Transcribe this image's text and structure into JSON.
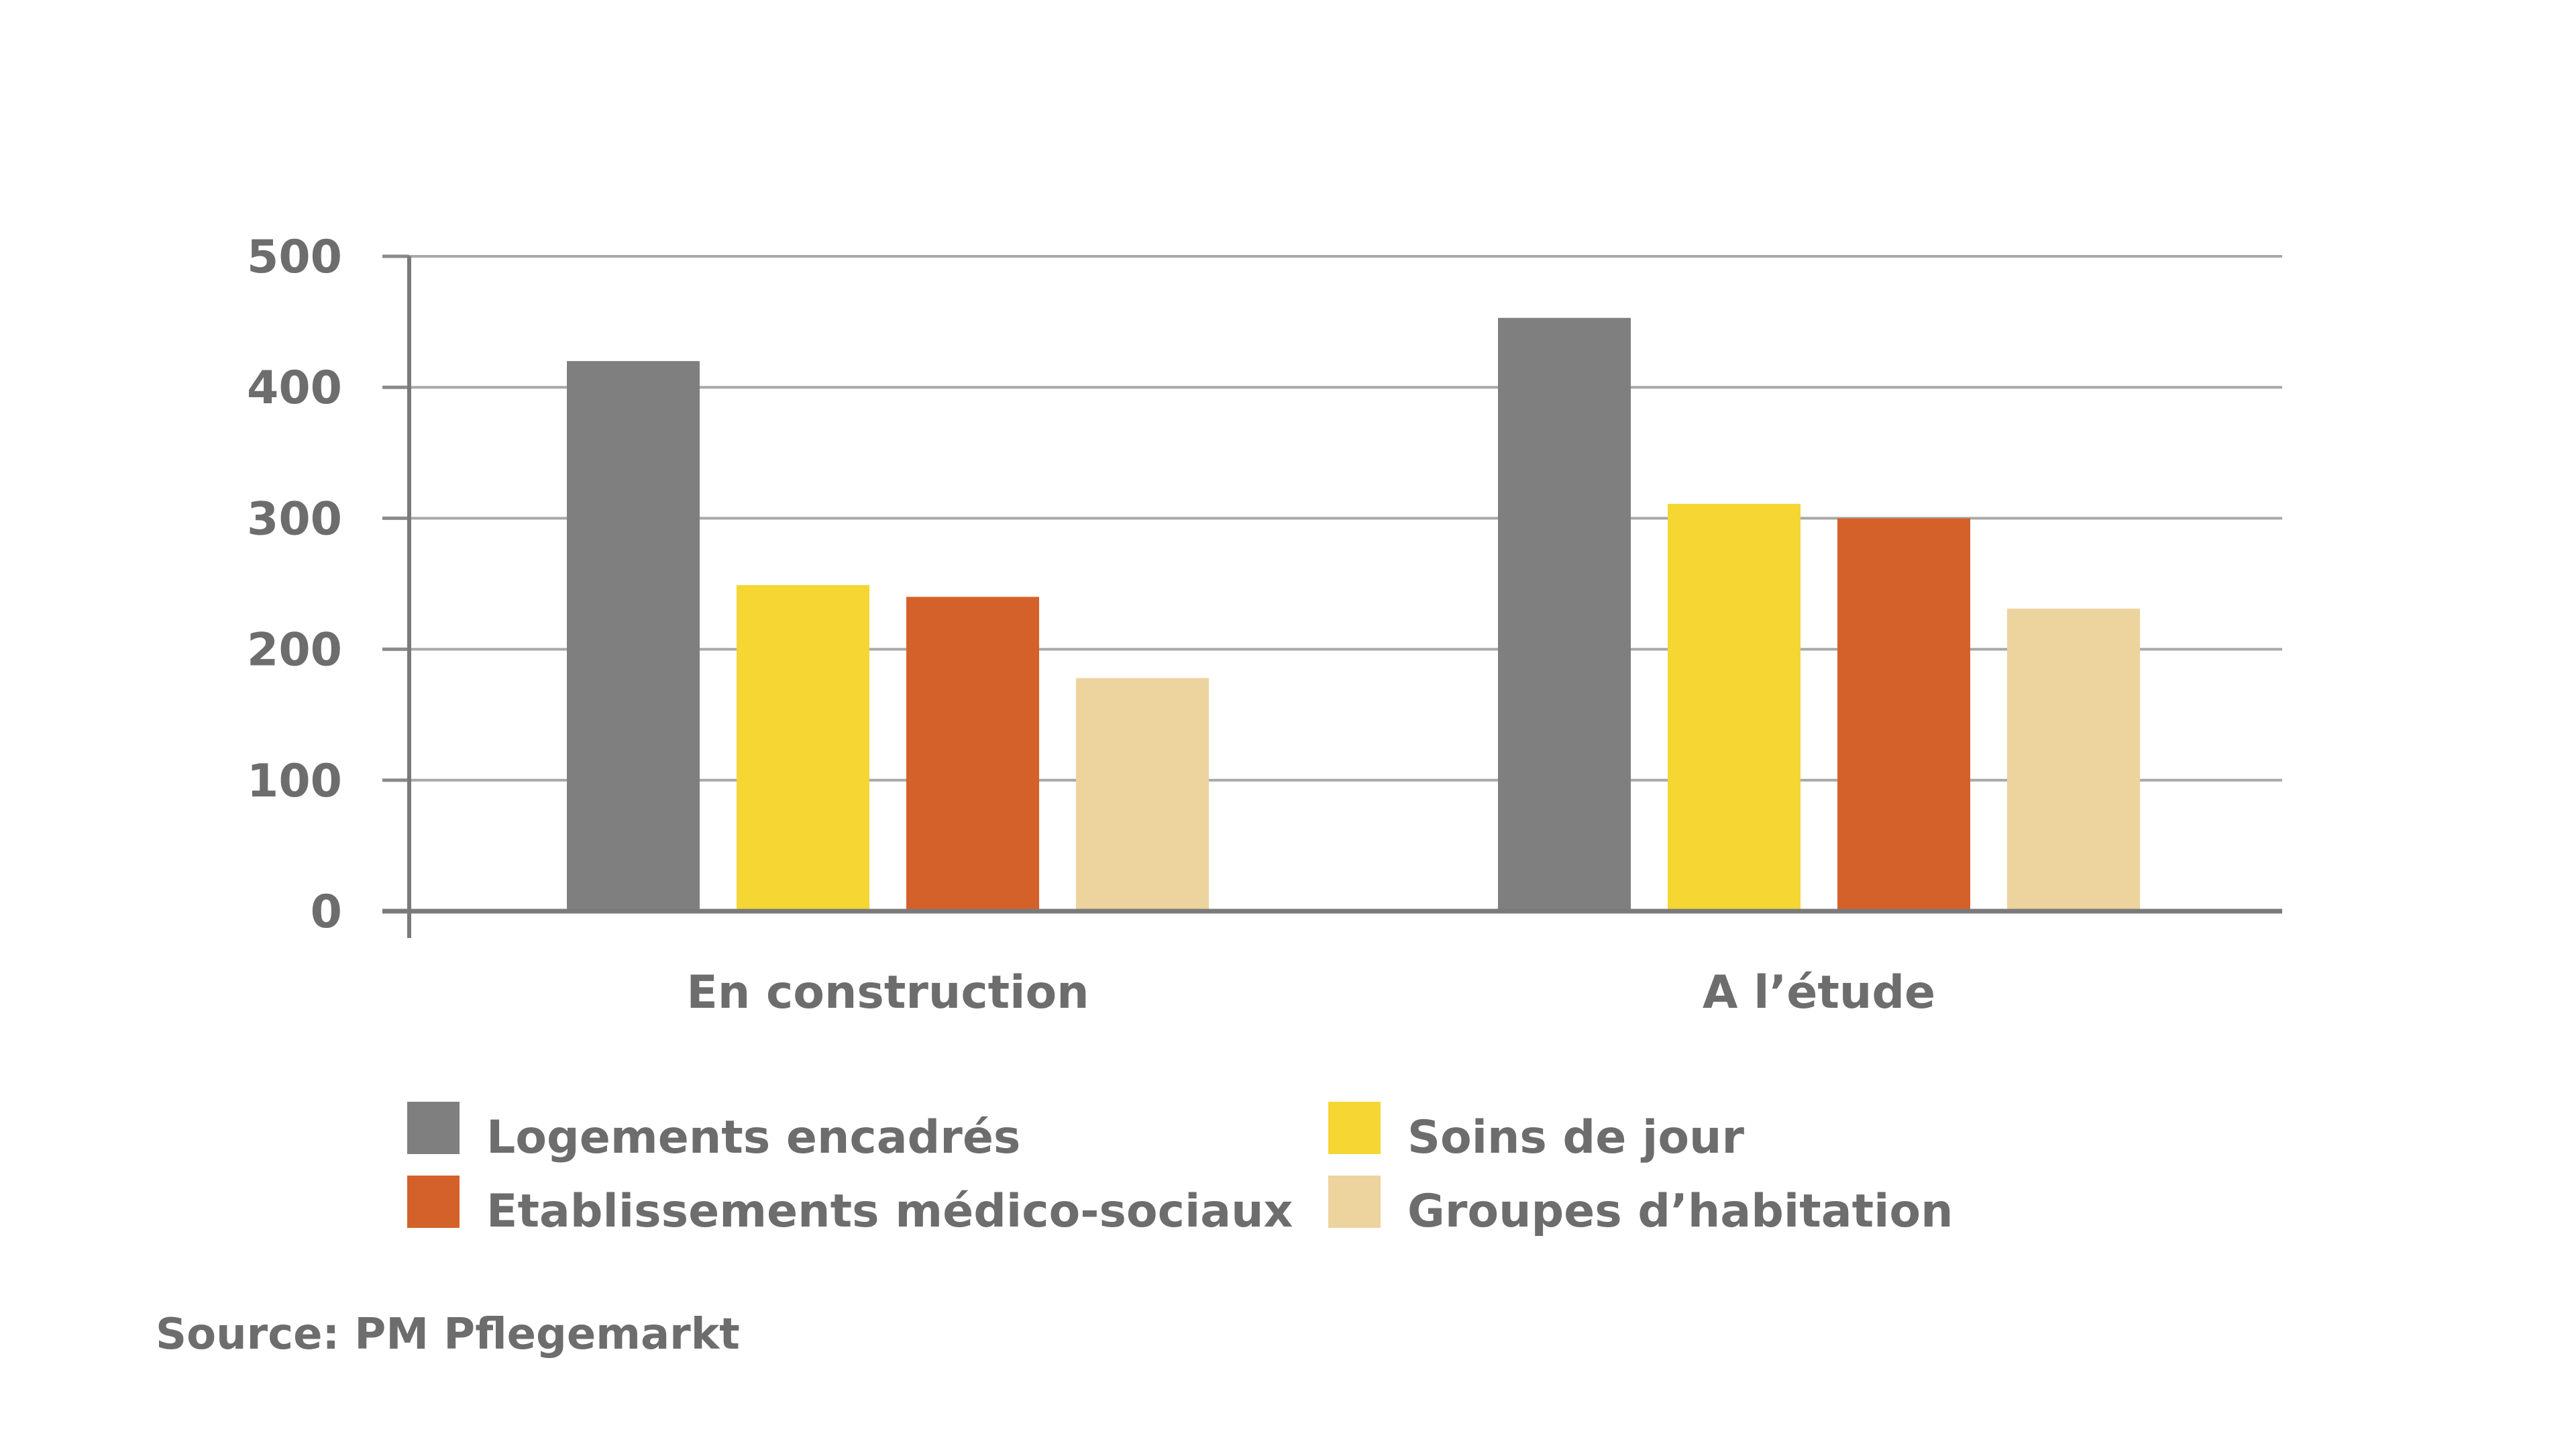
{
  "chart_data": {
    "type": "bar",
    "title": "",
    "xlabel": "",
    "ylabel": "",
    "ylim": [
      0,
      500
    ],
    "yticks": [
      0,
      100,
      200,
      300,
      400,
      500
    ],
    "categories": [
      "En construction",
      "A l’étude"
    ],
    "series": [
      {
        "name": "Logements encadrés",
        "color": "#7f7f7f",
        "values": [
          420,
          453
        ]
      },
      {
        "name": "Soins de jour",
        "color": "#f5d633",
        "values": [
          249,
          311
        ]
      },
      {
        "name": "Etablissements médico-sociaux",
        "color": "#d5612a",
        "values": [
          240,
          300
        ]
      },
      {
        "name": "Groupes d’habitation",
        "color": "#edd39e",
        "values": [
          178,
          231
        ]
      }
    ],
    "legend_position": "bottom",
    "grid": true
  },
  "source": "Source: PM Pflegemarkt"
}
